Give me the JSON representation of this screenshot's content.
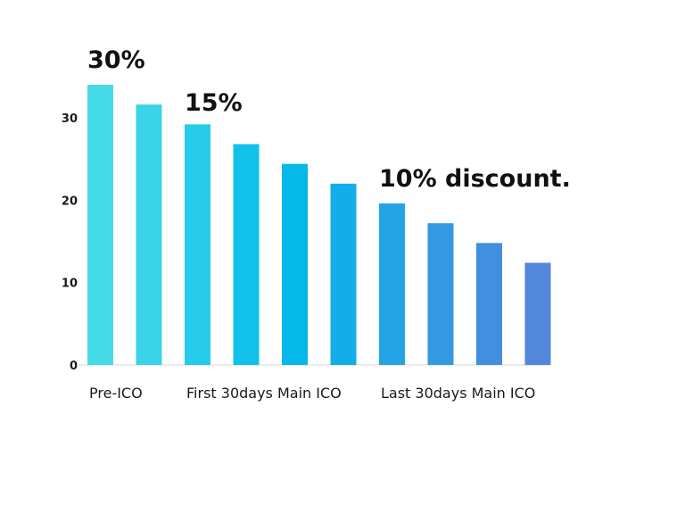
{
  "chart_data": {
    "type": "bar",
    "values": [
      34,
      31.6,
      29.2,
      26.8,
      24.4,
      22,
      19.6,
      17.2,
      14.8,
      12.4
    ],
    "ylim": [
      0,
      34
    ],
    "yticks": [
      "0",
      "10",
      "20",
      "30"
    ],
    "group_labels": [
      "Pre-ICO",
      "First 30days Main ICO",
      "Last 30days Main ICO"
    ],
    "annotations": [
      "30%",
      "15%",
      "10% discount."
    ],
    "grid": false,
    "legend": "none"
  },
  "colors": {
    "bars": [
      "#46dbe8",
      "#3bd3e8",
      "#26cbe9",
      "#11c1ea",
      "#06b7ea",
      "#12aee9",
      "#23a4e6",
      "#3499e3",
      "#428ee0",
      "#5287db"
    ],
    "axis": "#d9d9d9"
  }
}
